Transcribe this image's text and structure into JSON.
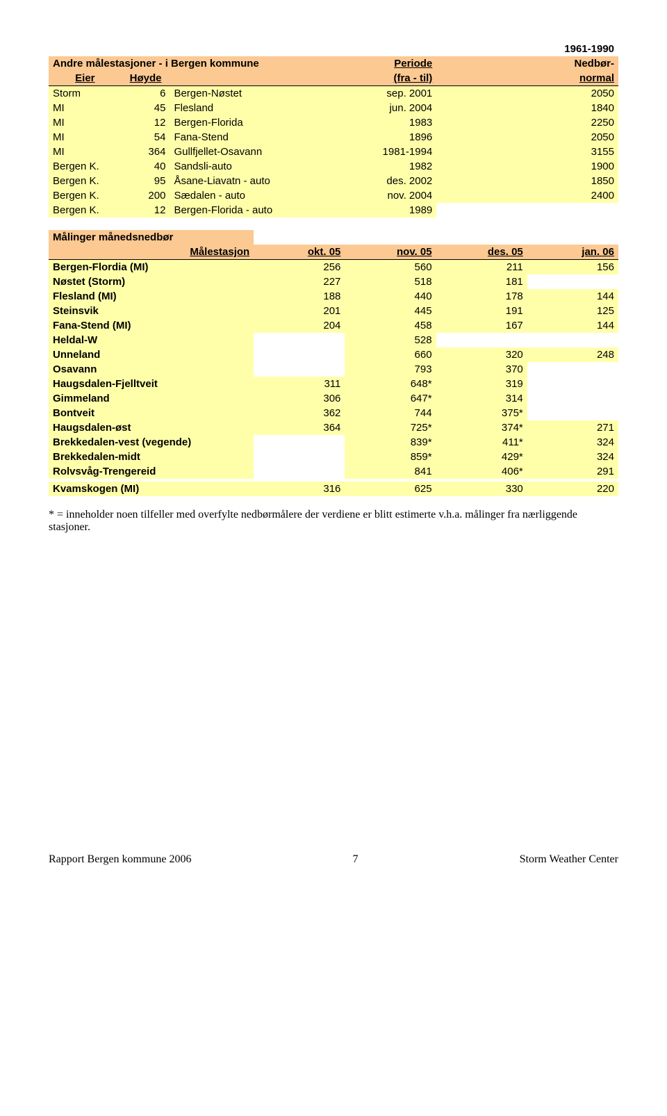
{
  "t1": {
    "sup_period": "1961-1990",
    "title_left": "Andre målestasjoner - i Bergen kommune",
    "title_period": "Periode",
    "title_nedbor": "Nedbør-",
    "hdr_eier": "Eier",
    "hdr_hoyde": "Høyde",
    "hdr_fra_til": "(fra - til)",
    "hdr_normal": "normal",
    "rows": [
      {
        "c": [
          "Storm",
          "6",
          "Bergen-Nøstet",
          "sep. 2001",
          "2050"
        ]
      },
      {
        "c": [
          "MI",
          "45",
          "Flesland",
          "jun. 2004",
          "1840"
        ]
      },
      {
        "c": [
          "MI",
          "12",
          "Bergen-Florida",
          "1983",
          "2250"
        ]
      },
      {
        "c": [
          "MI",
          "54",
          "Fana-Stend",
          "1896",
          "2050"
        ]
      },
      {
        "c": [
          "MI",
          "364",
          "Gullfjellet-Osavann",
          "1981-1994",
          "3155"
        ]
      },
      {
        "c": [
          "Bergen K.",
          "40",
          "Sandsli-auto",
          "1982",
          "1900"
        ]
      },
      {
        "c": [
          "Bergen K.",
          "95",
          "Åsane-Liavatn - auto",
          "des. 2002",
          "1850"
        ]
      },
      {
        "c": [
          "Bergen K.",
          "200",
          "Sædalen - auto",
          "nov. 2004",
          "2400"
        ]
      },
      {
        "c": [
          "Bergen K.",
          "12",
          "Bergen-Florida - auto",
          "1989",
          ""
        ]
      }
    ]
  },
  "t2": {
    "title": "Målinger månedsnedbør",
    "hdr": [
      "Målestasjon",
      "okt. 05",
      "nov. 05",
      "des. 05",
      "jan. 06"
    ],
    "rows": [
      {
        "c": [
          "Bergen-Flordia (MI)",
          "256",
          "560",
          "211",
          "156"
        ]
      },
      {
        "c": [
          "Nøstet (Storm)",
          "227",
          "518",
          "181",
          ""
        ]
      },
      {
        "c": [
          "Flesland (MI)",
          "188",
          "440",
          "178",
          "144"
        ]
      },
      {
        "c": [
          "Steinsvik",
          "201",
          "445",
          "191",
          "125"
        ]
      },
      {
        "c": [
          "Fana-Stend (MI)",
          "204",
          "458",
          "167",
          "144"
        ]
      },
      {
        "c": [
          "Heldal-W",
          "",
          "528",
          "",
          ""
        ]
      },
      {
        "c": [
          "Unneland",
          "",
          "660",
          "320",
          "248"
        ]
      },
      {
        "c": [
          "Osavann",
          "",
          "793",
          "370",
          ""
        ]
      },
      {
        "c": [
          "Haugsdalen-Fjelltveit",
          "311",
          "648*",
          "319",
          ""
        ]
      },
      {
        "c": [
          "Gimmeland",
          "306",
          "647*",
          "314",
          ""
        ]
      },
      {
        "c": [
          "Bontveit",
          "362",
          "744",
          "375*",
          ""
        ]
      },
      {
        "c": [
          "Haugsdalen-øst",
          "364",
          "725*",
          "374*",
          "271"
        ]
      },
      {
        "c": [
          "Brekkedalen-vest (vegende)",
          "",
          "839*",
          "411*",
          "324"
        ]
      },
      {
        "c": [
          "Brekkedalen-midt",
          "",
          "859*",
          "429*",
          "324"
        ]
      },
      {
        "c": [
          "Rolvsvåg-Trengereid",
          "",
          "841",
          "406*",
          "291"
        ]
      },
      {
        "c": [
          "",
          "",
          "",
          "",
          ""
        ]
      },
      {
        "c": [
          "Kvamskogen (MI)",
          "316",
          "625",
          "330",
          "220"
        ]
      }
    ]
  },
  "footnote": "* = inneholder noen tilfeller med overfylte nedbørmålere der verdiene er blitt estimerte v.h.a. målinger fra nærliggende stasjoner.",
  "footer": {
    "l": "Rapport Bergen kommune 2006",
    "c": "7",
    "r": "Storm Weather Center"
  }
}
